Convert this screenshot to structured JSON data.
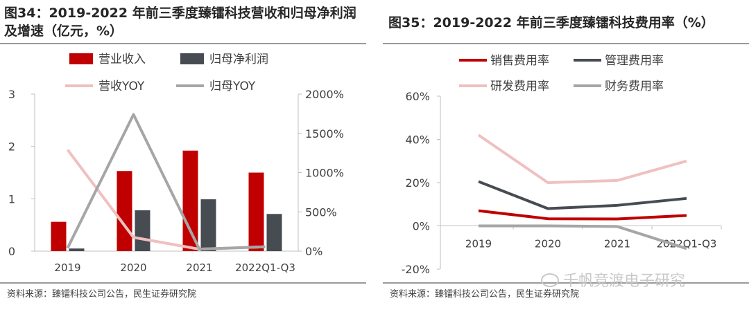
{
  "left": {
    "title": "图34：2019-2022 年前三季度臻镭科技营收和归母净利润及增速（亿元，%）",
    "source": "资料来源：臻镭科技公司公告，民生证券研究院"
  },
  "right": {
    "title": "图35：2019-2022 年前三季度臻镭科技费用率（%）",
    "source": "资料来源：臻镭科技公司公告，民生证券研究院"
  },
  "watermark": "千帆竞渡电子研究",
  "chart_data": [
    {
      "type": "bar",
      "title": "2019-2022 年前三季度臻镭科技营收和归母净利润及增速（亿元，%）",
      "categories": [
        "2019",
        "2020",
        "2021",
        "2022Q1-Q3"
      ],
      "series": [
        {
          "name": "营业收入",
          "kind": "bar",
          "axis": "left",
          "color": "#c00000",
          "values": [
            0.56,
            1.53,
            1.92,
            1.5
          ]
        },
        {
          "name": "归母净利润",
          "kind": "bar",
          "axis": "left",
          "color": "#474b52",
          "values": [
            0.05,
            0.78,
            0.99,
            0.71
          ]
        },
        {
          "name": "营收YOY",
          "kind": "line",
          "axis": "right",
          "color": "#f0c0c0",
          "values": [
            1290,
            175,
            25,
            55
          ]
        },
        {
          "name": "归母YOY",
          "kind": "line",
          "axis": "right",
          "color": "#a6a6a6",
          "values": [
            40,
            1740,
            25,
            55
          ]
        }
      ],
      "y_left": {
        "min": 0,
        "max": 3,
        "ticks": [
          0,
          1,
          2,
          3
        ],
        "tick_labels": [
          "0",
          "1",
          "2",
          "3"
        ]
      },
      "y_right": {
        "min": 0,
        "max": 2000,
        "ticks": [
          0,
          500,
          1000,
          1500,
          2000
        ],
        "tick_labels": [
          "0%",
          "500%",
          "1000%",
          "1500%",
          "2000%"
        ]
      },
      "legend_rows": [
        [
          "营业收入",
          "归母净利润"
        ],
        [
          "营收YOY",
          "归母YOY"
        ]
      ],
      "grid": false
    },
    {
      "type": "line",
      "title": "2019-2022 年前三季度臻镭科技费用率（%）",
      "categories": [
        "2019",
        "2020",
        "2021",
        "2022Q1-Q3"
      ],
      "category_labels": [
        "2019",
        "2020",
        "2021",
        "2022Q1-Q3"
      ],
      "series": [
        {
          "name": "销售费用率",
          "color": "#c00000",
          "values": [
            7,
            3.3,
            3.2,
            4.8
          ]
        },
        {
          "name": "管理费用率",
          "color": "#474b52",
          "values": [
            20.5,
            8,
            9.5,
            12.7
          ]
        },
        {
          "name": "研发费用率",
          "color": "#f0c0c0",
          "values": [
            42,
            20,
            21,
            30
          ]
        },
        {
          "name": "财务费用率",
          "color": "#a6a6a6",
          "values": [
            0,
            0,
            -0.3,
            -10.5
          ]
        }
      ],
      "y": {
        "min": -20,
        "max": 60,
        "ticks": [
          -20,
          0,
          20,
          40,
          60
        ],
        "tick_labels": [
          "-20%",
          "0%",
          "20%",
          "40%",
          "60%"
        ]
      },
      "legend_rows": [
        [
          "销售费用率",
          "管理费用率"
        ],
        [
          "研发费用率",
          "财务费用率"
        ]
      ],
      "grid": false
    }
  ]
}
